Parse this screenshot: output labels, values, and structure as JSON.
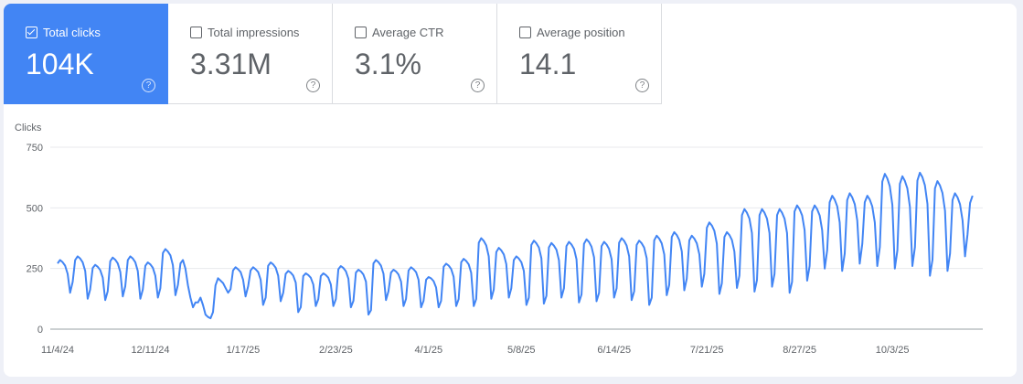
{
  "metrics": [
    {
      "label": "Total clicks",
      "value": "104K",
      "checked": true
    },
    {
      "label": "Total impressions",
      "value": "3.31M",
      "checked": false
    },
    {
      "label": "Average CTR",
      "value": "3.1%",
      "checked": false
    },
    {
      "label": "Average position",
      "value": "14.1",
      "checked": false
    }
  ],
  "colors": {
    "accent": "#4285f4",
    "line": "#4285f4"
  },
  "chart_data": {
    "type": "line",
    "ylabel": "Clicks",
    "ylim": [
      0,
      750
    ],
    "yticks": [
      "0",
      "250",
      "500",
      "750"
    ],
    "xticks": [
      "11/4/24",
      "12/11/24",
      "1/17/25",
      "2/23/25",
      "4/1/25",
      "5/8/25",
      "6/14/25",
      "7/21/25",
      "8/27/25",
      "10/3/25"
    ],
    "x_start": "11/4/24",
    "x_step_days": 1,
    "grid": true,
    "series": [
      {
        "values": [
          271,
          285,
          276,
          262,
          228,
          150,
          195,
          285,
          300,
          291,
          276,
          240,
          125,
          163,
          252,
          265,
          257,
          244,
          212,
          120,
          156,
          280,
          295,
          286,
          271,
          236,
          135,
          176,
          285,
          300,
          291,
          276,
          240,
          125,
          163,
          261,
          275,
          267,
          253,
          220,
          130,
          169,
          314,
          330,
          320,
          304,
          264,
          140,
          182,
          271,
          285,
          250,
          180,
          130,
          90,
          110,
          110,
          130,
          100,
          60,
          50,
          45,
          70,
          180,
          210,
          200,
          190,
          170,
          150,
          165,
          242,
          255,
          247,
          235,
          204,
          135,
          176,
          242,
          255,
          247,
          235,
          204,
          100,
          130,
          261,
          275,
          267,
          253,
          220,
          115,
          150,
          228,
          240,
          233,
          221,
          192,
          70,
          91,
          219,
          230,
          223,
          212,
          184,
          95,
          124,
          219,
          230,
          223,
          212,
          184,
          95,
          124,
          247,
          260,
          252,
          239,
          208,
          90,
          117,
          233,
          245,
          238,
          225,
          196,
          60,
          78,
          271,
          285,
          276,
          262,
          228,
          120,
          156,
          233,
          245,
          238,
          225,
          196,
          95,
          124,
          242,
          255,
          247,
          235,
          204,
          90,
          117,
          204,
          215,
          209,
          198,
          172,
          90,
          117,
          257,
          270,
          262,
          248,
          216,
          95,
          124,
          276,
          290,
          281,
          267,
          232,
          95,
          124,
          356,
          375,
          364,
          345,
          300,
          125,
          163,
          318,
          335,
          325,
          308,
          268,
          130,
          169,
          285,
          300,
          291,
          276,
          240,
          100,
          130,
          347,
          365,
          354,
          336,
          292,
          105,
          137,
          337,
          355,
          344,
          327,
          284,
          130,
          169,
          342,
          360,
          349,
          331,
          288,
          110,
          143,
          352,
          370,
          359,
          340,
          296,
          115,
          150,
          342,
          360,
          349,
          331,
          288,
          130,
          169,
          356,
          375,
          364,
          345,
          300,
          120,
          156,
          347,
          365,
          354,
          336,
          292,
          100,
          130,
          366,
          385,
          373,
          354,
          308,
          140,
          182,
          380,
          400,
          388,
          368,
          320,
          160,
          208,
          366,
          385,
          373,
          354,
          308,
          175,
          228,
          418,
          440,
          427,
          405,
          352,
          145,
          189,
          380,
          400,
          388,
          368,
          320,
          170,
          221,
          470,
          495,
          480,
          455,
          396,
          155,
          202,
          470,
          495,
          480,
          455,
          396,
          175,
          228,
          470,
          495,
          480,
          455,
          396,
          150,
          195,
          485,
          510,
          495,
          469,
          408,
          200,
          260,
          485,
          510,
          495,
          469,
          408,
          250,
          325,
          523,
          550,
          534,
          506,
          440,
          240,
          312,
          532,
          560,
          543,
          515,
          448,
          270,
          351,
          523,
          550,
          534,
          506,
          440,
          260,
          338,
          608,
          640,
          621,
          589,
          512,
          250,
          325,
          599,
          630,
          611,
          580,
          504,
          260,
          338,
          613,
          645,
          626,
          593,
          516,
          220,
          286,
          580,
          610,
          592,
          561,
          488,
          240,
          312,
          532,
          560,
          543,
          515,
          448,
          300,
          390,
          520,
          550
        ]
      }
    ]
  }
}
